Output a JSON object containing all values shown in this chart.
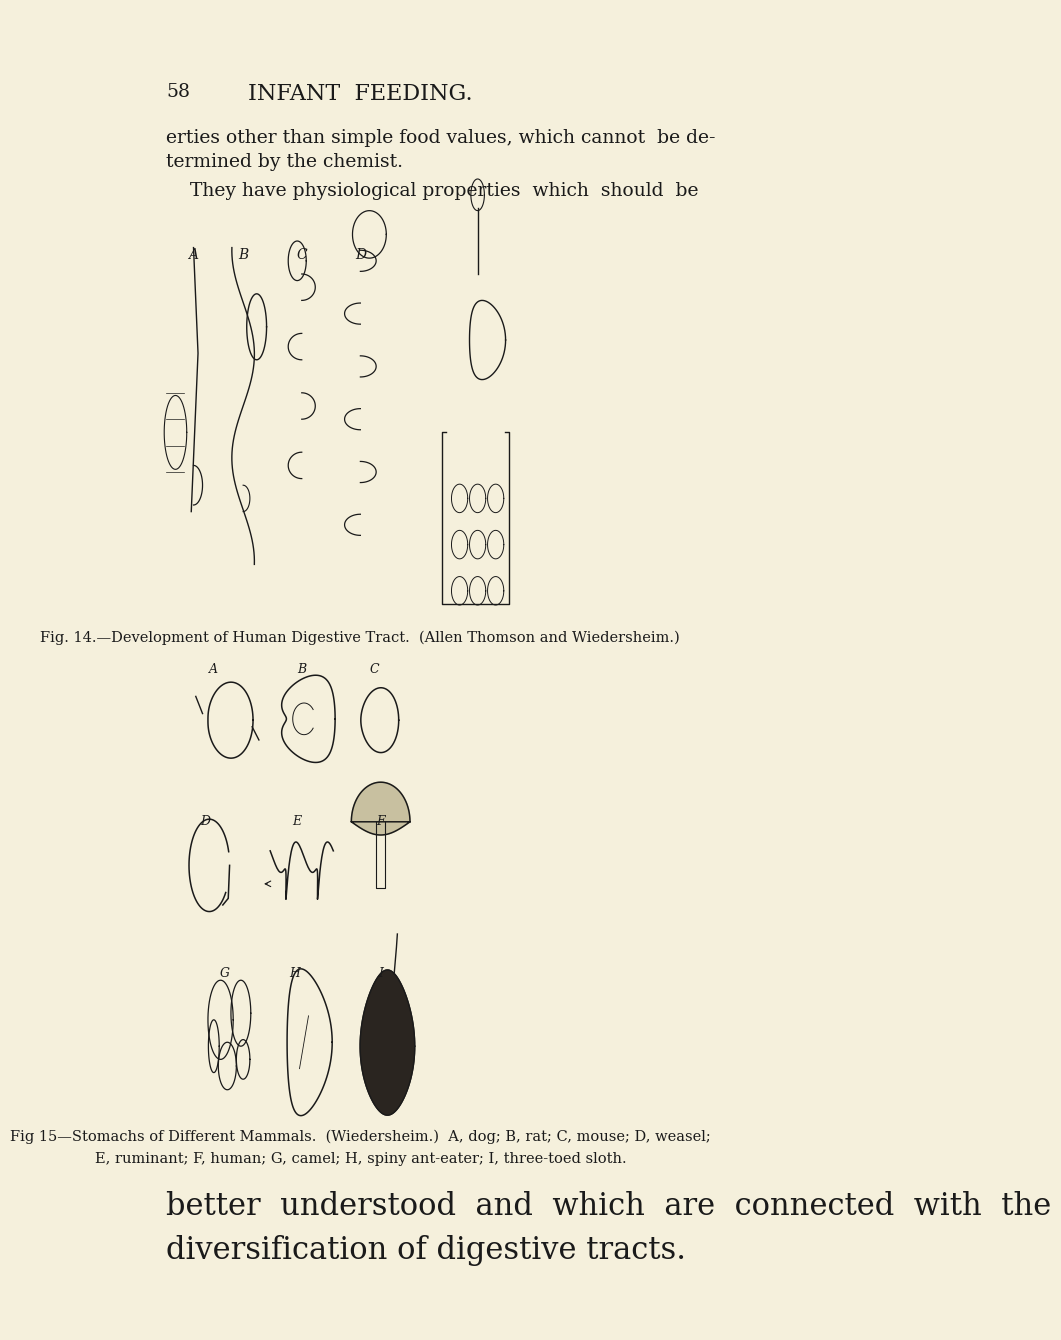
{
  "background_color": "#F5F0DC",
  "page_number": "58",
  "header": "INFANT  FEEDING.",
  "text_color": "#1a1a1a",
  "body_text_size": 13.5,
  "header_text_size": 16,
  "page_num_size": 13.5,
  "fig_caption_size": 10.5,
  "large_text_size": 22,
  "para1_line1": "erties other than simple food values, which cannot  be de-",
  "para1_line2": "termined by the chemist.",
  "para2_line1": "    They have physiological properties  which  should  be",
  "fig14_caption": "Fig. 14.—Development of Human Digestive Tract.  (Allen Thomson and Wiedersheim.)",
  "fig15_caption_line1": "Fig 15—Stomachs of Different Mammals.  (Wiedersheim.)  A, dog; B, rat; C, mouse; D, weasel;",
  "fig15_caption_line2": "E, ruminant; F, human; G, camel; H, spiny ant-eater; I, three-toed sloth.",
  "bottom_line1": "better  understood  and  which  are  connected  with  the",
  "bottom_line2": "diversification of digestive tracts."
}
